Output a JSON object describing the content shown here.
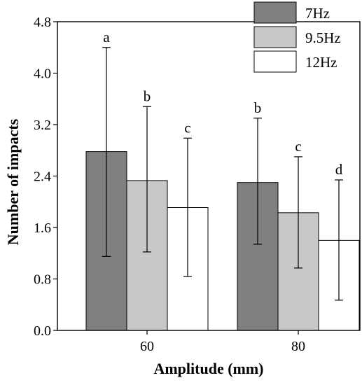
{
  "chart_data": {
    "type": "bar",
    "title": "",
    "xlabel": "Amplitude (mm)",
    "ylabel": "Number of impacts",
    "categories": [
      "60",
      "80"
    ],
    "ylim": [
      0,
      4.8
    ],
    "yticks": [
      "0.0",
      "0.8",
      "1.6",
      "2.4",
      "3.2",
      "4.0",
      "4.8"
    ],
    "legend_position": "top-right",
    "grid": false,
    "series": [
      {
        "name": "7Hz",
        "color": "#808080",
        "values": [
          2.78,
          2.3
        ],
        "error_low": [
          1.15,
          1.34
        ],
        "error_high": [
          4.4,
          3.3
        ],
        "significance": [
          "a",
          "b"
        ]
      },
      {
        "name": "9.5Hz",
        "color": "#c8c8c8",
        "values": [
          2.33,
          1.83
        ],
        "error_low": [
          1.22,
          0.97
        ],
        "error_high": [
          3.48,
          2.7
        ],
        "significance": [
          "b",
          "c"
        ]
      },
      {
        "name": "12Hz",
        "color": "#ffffff",
        "values": [
          1.91,
          1.4
        ],
        "error_low": [
          0.84,
          0.47
        ],
        "error_high": [
          2.99,
          2.34
        ],
        "significance": [
          "c",
          "d"
        ]
      }
    ]
  }
}
